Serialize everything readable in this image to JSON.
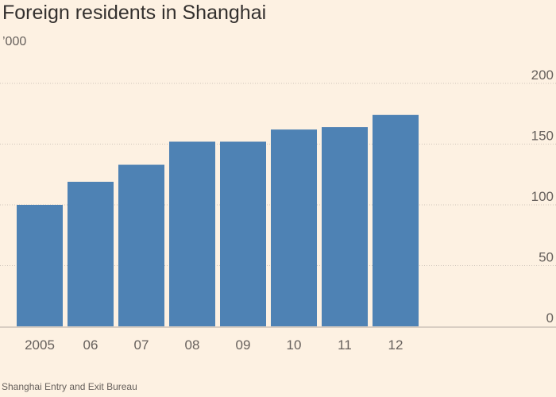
{
  "title": "Foreign residents in Shanghai",
  "unit": "’000",
  "source": "Shanghai Entry and Exit Bureau",
  "colors": {
    "bar": "#4e82b4",
    "background": "#fdf1e2",
    "grid": "#cfc5bb"
  },
  "chart_data": {
    "type": "bar",
    "title": "Foreign residents in Shanghai",
    "ylabel": "’000",
    "xlabel": "",
    "categories": [
      "2005",
      "06",
      "07",
      "08",
      "09",
      "10",
      "11",
      "12"
    ],
    "values": [
      100,
      119,
      133,
      152,
      152,
      162,
      164,
      174
    ],
    "ylim": [
      0,
      200
    ],
    "yticks": [
      0,
      50,
      100,
      150,
      200
    ],
    "grid": true,
    "yaxis_position": "right"
  }
}
